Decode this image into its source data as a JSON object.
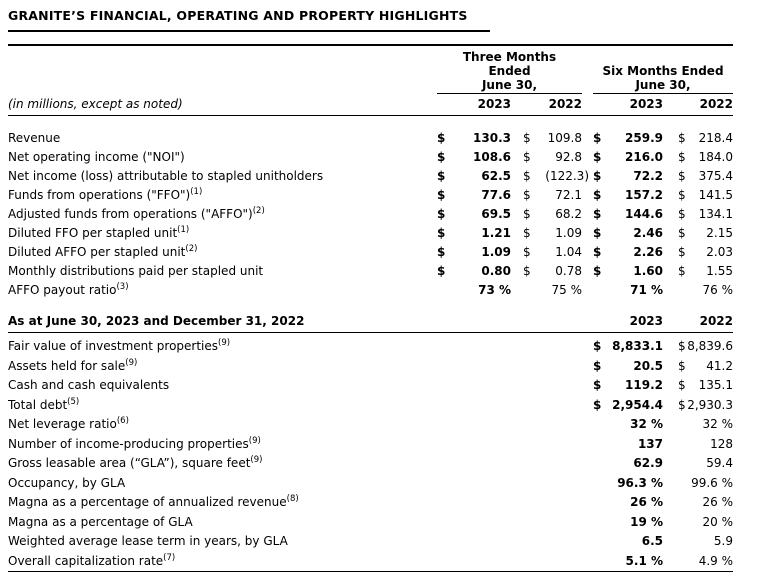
{
  "title": "GRANITE’S FINANCIAL, OPERATING AND PROPERTY HIGHLIGHTS",
  "note": "(in millions, except as noted)",
  "table1": {
    "groups": [
      "Three Months\nEnded\nJune 30,",
      "Six Months Ended\nJune 30,"
    ],
    "years": [
      "2023",
      "2022",
      "2023",
      "2022"
    ],
    "rows": [
      {
        "label": "Revenue",
        "sup": "",
        "cells": [
          {
            "d": "$",
            "v": "130.3"
          },
          {
            "d": "$",
            "v": "109.8"
          },
          {
            "d": "$",
            "v": "259.9"
          },
          {
            "d": "$",
            "v": "218.4"
          }
        ]
      },
      {
        "label": "Net operating income (\"NOI\")",
        "sup": "",
        "cells": [
          {
            "d": "$",
            "v": "108.6"
          },
          {
            "d": "$",
            "v": "92.8"
          },
          {
            "d": "$",
            "v": "216.0"
          },
          {
            "d": "$",
            "v": "184.0"
          }
        ]
      },
      {
        "label": "Net income (loss) attributable to stapled unitholders",
        "sup": "",
        "cells": [
          {
            "d": "$",
            "v": "62.5"
          },
          {
            "d": "$",
            "v": "(122.3)"
          },
          {
            "d": "$",
            "v": "72.2"
          },
          {
            "d": "$",
            "v": "375.4"
          }
        ]
      },
      {
        "label": "Funds from operations (\"FFO\")",
        "sup": "1",
        "cells": [
          {
            "d": "$",
            "v": "77.6"
          },
          {
            "d": "$",
            "v": "72.1"
          },
          {
            "d": "$",
            "v": "157.2"
          },
          {
            "d": "$",
            "v": "141.5"
          }
        ]
      },
      {
        "label": "Adjusted funds from operations (\"AFFO\")",
        "sup": "2",
        "cells": [
          {
            "d": "$",
            "v": "69.5"
          },
          {
            "d": "$",
            "v": "68.2"
          },
          {
            "d": "$",
            "v": "144.6"
          },
          {
            "d": "$",
            "v": "134.1"
          }
        ]
      },
      {
        "label": "Diluted FFO per stapled unit",
        "sup": "1",
        "cells": [
          {
            "d": "$",
            "v": "1.21"
          },
          {
            "d": "$",
            "v": "1.09"
          },
          {
            "d": "$",
            "v": "2.46"
          },
          {
            "d": "$",
            "v": "2.15"
          }
        ]
      },
      {
        "label": "Diluted AFFO per stapled unit",
        "sup": "2",
        "cells": [
          {
            "d": "$",
            "v": "1.09"
          },
          {
            "d": "$",
            "v": "1.04"
          },
          {
            "d": "$",
            "v": "2.26"
          },
          {
            "d": "$",
            "v": "2.03"
          }
        ]
      },
      {
        "label": "Monthly distributions paid per stapled unit",
        "sup": "",
        "cells": [
          {
            "d": "$",
            "v": "0.80"
          },
          {
            "d": "$",
            "v": "0.78"
          },
          {
            "d": "$",
            "v": "1.60"
          },
          {
            "d": "$",
            "v": "1.55"
          }
        ]
      },
      {
        "label": "AFFO payout ratio",
        "sup": "3",
        "cells": [
          {
            "d": "",
            "v": "73 %"
          },
          {
            "d": "",
            "v": "75 %"
          },
          {
            "d": "",
            "v": "71 %"
          },
          {
            "d": "",
            "v": "76 %"
          }
        ]
      }
    ]
  },
  "table2": {
    "header": "As at June 30, 2023 and December 31, 2022",
    "years": [
      "2023",
      "2022"
    ],
    "rows": [
      {
        "label": "Fair value of investment properties",
        "sup": "9",
        "cells": [
          {
            "d": "$",
            "v": "8,833.1"
          },
          {
            "d": "$",
            "v": "8,839.6"
          }
        ]
      },
      {
        "label": "Assets held for sale",
        "sup": "9",
        "cells": [
          {
            "d": "$",
            "v": "20.5"
          },
          {
            "d": "$",
            "v": "41.2"
          }
        ]
      },
      {
        "label": "Cash and cash equivalents",
        "sup": "",
        "cells": [
          {
            "d": "$",
            "v": "119.2"
          },
          {
            "d": "$",
            "v": "135.1"
          }
        ]
      },
      {
        "label": "Total debt",
        "sup": "5",
        "cells": [
          {
            "d": "$",
            "v": "2,954.4"
          },
          {
            "d": "$",
            "v": "2,930.3"
          }
        ]
      },
      {
        "label": "Net leverage ratio",
        "sup": "6",
        "cells": [
          {
            "d": "",
            "v": "32 %"
          },
          {
            "d": "",
            "v": "32 %"
          }
        ]
      },
      {
        "label": "Number of income-producing properties",
        "sup": "9",
        "cells": [
          {
            "d": "",
            "v": "137"
          },
          {
            "d": "",
            "v": "128"
          }
        ]
      },
      {
        "label": "Gross leasable area (“GLA”), square feet",
        "sup": "9",
        "cells": [
          {
            "d": "",
            "v": "62.9"
          },
          {
            "d": "",
            "v": "59.4"
          }
        ]
      },
      {
        "label": "Occupancy, by GLA",
        "sup": "",
        "cells": [
          {
            "d": "",
            "v": "96.3 %"
          },
          {
            "d": "",
            "v": "99.6 %"
          }
        ]
      },
      {
        "label": "Magna as a percentage of annualized revenue",
        "sup": "8",
        "cells": [
          {
            "d": "",
            "v": "26 %"
          },
          {
            "d": "",
            "v": "26 %"
          }
        ]
      },
      {
        "label": "Magna as a percentage of GLA",
        "sup": "",
        "cells": [
          {
            "d": "",
            "v": "19 %"
          },
          {
            "d": "",
            "v": "20 %"
          }
        ]
      },
      {
        "label": "Weighted average lease term in years, by GLA",
        "sup": "",
        "cells": [
          {
            "d": "",
            "v": "6.5"
          },
          {
            "d": "",
            "v": "5.9"
          }
        ]
      },
      {
        "label": "Overall capitalization rate",
        "sup": "7",
        "cells": [
          {
            "d": "",
            "v": "5.1 %"
          },
          {
            "d": "",
            "v": "4.9 %"
          }
        ]
      }
    ]
  }
}
